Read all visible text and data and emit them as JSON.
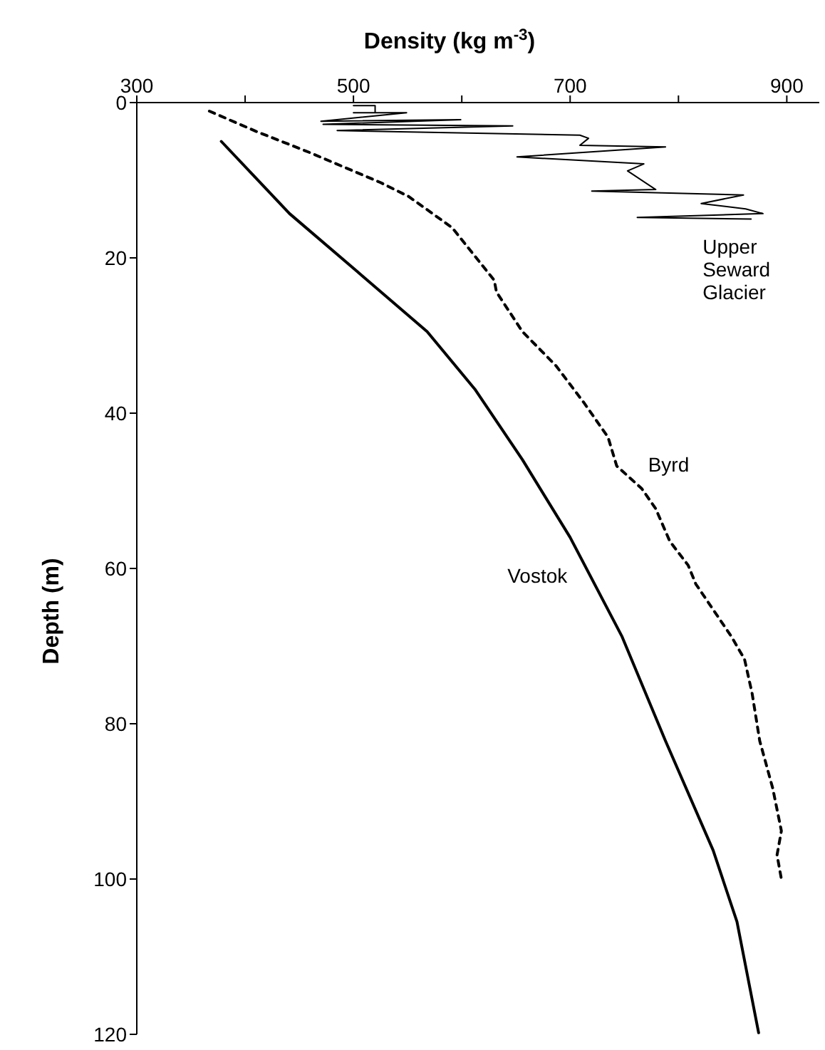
{
  "chart_data": {
    "type": "line",
    "xlabel": "Density (kg m$^{-3}$)",
    "ylabel": "Depth (m)",
    "xlim": [
      300,
      930
    ],
    "xticks": [
      300,
      {
        "value": 400,
        "label": null
      },
      500,
      {
        "value": 600,
        "label": null
      },
      700,
      {
        "value": 800,
        "label": null
      },
      900
    ],
    "ylim": [
      120,
      0
    ],
    "yticks": [
      0,
      20,
      40,
      60,
      80,
      100,
      120
    ],
    "grid": false,
    "legend": false,
    "marker": "none",
    "series": [
      {
        "name": "Upper Seward Glacier",
        "color": "#000000",
        "line_style": "solid",
        "x": [
          500,
          520,
          520,
          500,
          549,
          470,
          599,
          472,
          647,
          485,
          709,
          717,
          709,
          788,
          651,
          768,
          753,
          779,
          720,
          860,
          821,
          862,
          878,
          762,
          867
        ],
        "values": [
          0.4,
          0.4,
          1.3,
          1.3,
          1.3,
          2.4,
          2.2,
          2.8,
          3.0,
          3.6,
          4.2,
          4.6,
          5.5,
          5.7,
          7.0,
          7.9,
          8.8,
          11.2,
          11.4,
          11.9,
          13,
          13.7,
          14.3,
          14.8,
          15.0
        ]
      },
      {
        "name": "Byrd",
        "color": "#000000",
        "line_style": "dashed",
        "x": [
          367,
          410,
          459,
          525,
          551,
          591,
          630,
          632,
          656,
          687,
          713,
          735,
          743,
          766,
          779,
          792,
          809,
          816,
          849,
          861,
          868,
          875,
          887,
          895,
          891,
          895
        ],
        "values": [
          1.1,
          3.7,
          6.4,
          10.3,
          12.1,
          16.1,
          22.9,
          24.4,
          29.5,
          33.9,
          38.7,
          43.1,
          46.8,
          49.7,
          52.3,
          56.5,
          59.6,
          62,
          68.8,
          71.7,
          76.1,
          82.2,
          88.3,
          93.8,
          96.9,
          100
        ]
      },
      {
        "name": "Vostok",
        "color": "#000000",
        "line_style": "solid",
        "x": [
          378,
          441,
          503,
          568,
          612,
          656,
          700,
          748,
          788,
          832,
          854,
          874
        ],
        "values": [
          5.0,
          14.3,
          21.7,
          29.5,
          36.9,
          46,
          56,
          68.8,
          82.2,
          96.3,
          105.5,
          119.8
        ]
      }
    ]
  }
}
